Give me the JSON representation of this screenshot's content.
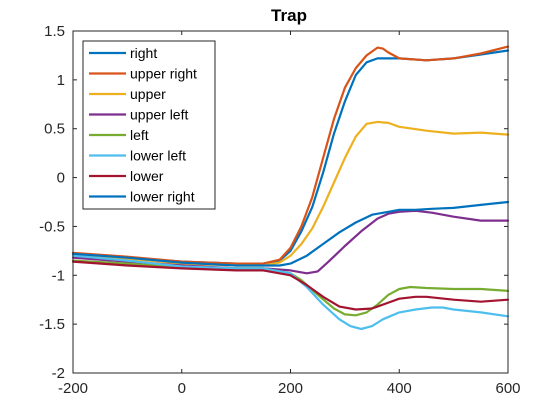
{
  "chart_data": {
    "type": "line",
    "title": "Trap",
    "xlabel": "",
    "ylabel": "",
    "xlim": [
      -200,
      600
    ],
    "ylim": [
      -2,
      1.5
    ],
    "xticks": [
      -200,
      0,
      200,
      400,
      600
    ],
    "xtick_labels": [
      "-200",
      "0",
      "200",
      "400",
      "600"
    ],
    "yticks": [
      -2,
      -1.5,
      -1,
      -0.5,
      0,
      0.5,
      1,
      1.5
    ],
    "ytick_labels": [
      "-2",
      "-1.5",
      "-1",
      "-0.5",
      "0",
      "0.5",
      "1",
      "1.5"
    ],
    "grid": false,
    "legend_position": "top-left",
    "series": [
      {
        "name": "right",
        "color": "#0072BD",
        "x": [
          -200,
          -100,
          0,
          100,
          150,
          180,
          200,
          220,
          240,
          260,
          280,
          300,
          320,
          340,
          360,
          380,
          400,
          450,
          500,
          550,
          600
        ],
        "y": [
          -0.78,
          -0.82,
          -0.86,
          -0.88,
          -0.88,
          -0.85,
          -0.75,
          -0.55,
          -0.3,
          0.05,
          0.45,
          0.78,
          1.05,
          1.18,
          1.22,
          1.22,
          1.22,
          1.2,
          1.22,
          1.26,
          1.3
        ]
      },
      {
        "name": "upper right",
        "color": "#D95319",
        "x": [
          -200,
          -100,
          0,
          100,
          150,
          180,
          200,
          220,
          240,
          260,
          280,
          300,
          320,
          340,
          360,
          370,
          380,
          400,
          450,
          500,
          550,
          600
        ],
        "y": [
          -0.77,
          -0.81,
          -0.86,
          -0.88,
          -0.88,
          -0.84,
          -0.72,
          -0.5,
          -0.2,
          0.2,
          0.6,
          0.92,
          1.12,
          1.25,
          1.33,
          1.32,
          1.28,
          1.22,
          1.2,
          1.22,
          1.27,
          1.34
        ]
      },
      {
        "name": "upper",
        "color": "#EDB120",
        "x": [
          -200,
          -100,
          0,
          100,
          150,
          180,
          200,
          220,
          240,
          260,
          280,
          300,
          320,
          340,
          360,
          380,
          400,
          450,
          500,
          550,
          600
        ],
        "y": [
          -0.79,
          -0.83,
          -0.88,
          -0.9,
          -0.9,
          -0.87,
          -0.8,
          -0.68,
          -0.52,
          -0.3,
          -0.05,
          0.2,
          0.42,
          0.55,
          0.57,
          0.56,
          0.52,
          0.48,
          0.45,
          0.46,
          0.44
        ]
      },
      {
        "name": "upper left",
        "color": "#7E2F8E",
        "x": [
          -200,
          -100,
          0,
          100,
          150,
          200,
          230,
          250,
          270,
          300,
          330,
          360,
          380,
          400,
          430,
          460,
          500,
          550,
          600
        ],
        "y": [
          -0.82,
          -0.86,
          -0.9,
          -0.93,
          -0.93,
          -0.95,
          -0.98,
          -0.96,
          -0.86,
          -0.7,
          -0.55,
          -0.42,
          -0.37,
          -0.35,
          -0.34,
          -0.36,
          -0.4,
          -0.44,
          -0.44
        ]
      },
      {
        "name": "left",
        "color": "#77AC30",
        "x": [
          -200,
          -100,
          0,
          100,
          150,
          200,
          220,
          250,
          280,
          300,
          320,
          340,
          360,
          380,
          400,
          420,
          450,
          500,
          550,
          600
        ],
        "y": [
          -0.85,
          -0.88,
          -0.92,
          -0.93,
          -0.93,
          -0.98,
          -1.05,
          -1.2,
          -1.34,
          -1.4,
          -1.41,
          -1.38,
          -1.3,
          -1.2,
          -1.14,
          -1.12,
          -1.13,
          -1.14,
          -1.14,
          -1.16
        ]
      },
      {
        "name": "lower left",
        "color": "#4DBEEE",
        "x": [
          -200,
          -100,
          0,
          100,
          150,
          200,
          230,
          260,
          290,
          310,
          330,
          350,
          370,
          400,
          430,
          460,
          480,
          500,
          550,
          600
        ],
        "y": [
          -0.8,
          -0.85,
          -0.91,
          -0.93,
          -0.93,
          -0.98,
          -1.12,
          -1.3,
          -1.45,
          -1.52,
          -1.55,
          -1.52,
          -1.45,
          -1.38,
          -1.35,
          -1.33,
          -1.33,
          -1.35,
          -1.38,
          -1.42
        ]
      },
      {
        "name": "lower",
        "color": "#A2142F",
        "x": [
          -200,
          -100,
          0,
          100,
          150,
          200,
          230,
          260,
          290,
          320,
          350,
          380,
          400,
          430,
          450,
          500,
          550,
          600
        ],
        "y": [
          -0.86,
          -0.9,
          -0.93,
          -0.95,
          -0.95,
          -1.0,
          -1.1,
          -1.22,
          -1.32,
          -1.35,
          -1.34,
          -1.28,
          -1.24,
          -1.22,
          -1.22,
          -1.25,
          -1.27,
          -1.25
        ]
      },
      {
        "name": "lower right",
        "color": "#0072BD",
        "x": [
          -200,
          -100,
          0,
          100,
          150,
          180,
          200,
          230,
          260,
          290,
          320,
          350,
          380,
          400,
          430,
          460,
          500,
          550,
          600
        ],
        "y": [
          -0.78,
          -0.82,
          -0.87,
          -0.9,
          -0.9,
          -0.9,
          -0.88,
          -0.8,
          -0.68,
          -0.56,
          -0.46,
          -0.38,
          -0.35,
          -0.33,
          -0.33,
          -0.32,
          -0.31,
          -0.28,
          -0.25
        ]
      }
    ]
  }
}
